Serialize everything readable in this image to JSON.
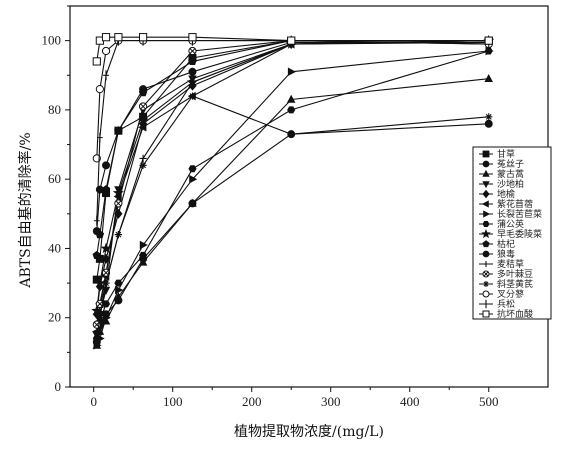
{
  "chart_data": {
    "type": "line",
    "title": "",
    "xlabel": "植物提取物浓度/(mg/L)",
    "ylabel": "ABTS自由基的清除率/%",
    "xlim": [
      -30,
      575
    ],
    "ylim": [
      0,
      110
    ],
    "xticks": [
      0,
      100,
      200,
      300,
      400,
      500
    ],
    "yticks": [
      0,
      20,
      40,
      60,
      80,
      100
    ],
    "grid": false,
    "legend_position": "right",
    "x": [
      3.9,
      7.8,
      15.6,
      31.25,
      62.5,
      125,
      250,
      500
    ],
    "series": [
      {
        "name": "甘草",
        "marker": "square-filled",
        "values": [
          31,
          37,
          56,
          74,
          78,
          95,
          100,
          100
        ]
      },
      {
        "name": "菟丝子",
        "marker": "circle-filled",
        "values": [
          45,
          57,
          64,
          74,
          86,
          91,
          99.5,
          99.5
        ]
      },
      {
        "name": "蒙古蒿",
        "marker": "triangle-up-filled",
        "values": [
          12,
          16,
          19,
          26,
          36,
          53,
          83,
          89
        ]
      },
      {
        "name": "沙地柏",
        "marker": "triangle-down-filled",
        "values": [
          15,
          21,
          28,
          57,
          80,
          89,
          99,
          100
        ]
      },
      {
        "name": "地榆",
        "marker": "diamond-filled",
        "values": [
          21,
          29,
          37,
          50,
          76,
          87,
          99,
          100
        ]
      },
      {
        "name": "紫花苜蓿",
        "marker": "triangle-left-filled",
        "values": [
          16,
          24,
          32,
          55,
          75,
          84,
          99,
          99.5
        ]
      },
      {
        "name": "长裂苦苣菜",
        "marker": "triangle-right-filled",
        "values": [
          12,
          14,
          20,
          28,
          41,
          60,
          91,
          97
        ]
      },
      {
        "name": "蒲公英",
        "marker": "hexagon-filled",
        "values": [
          14,
          19,
          24,
          30,
          38,
          63,
          80,
          97
        ]
      },
      {
        "name": "早毛委陵菜",
        "marker": "star-filled",
        "values": [
          22,
          30,
          40,
          56,
          77,
          88,
          99,
          100
        ]
      },
      {
        "name": "枯杞",
        "marker": "pentagon-filled",
        "values": [
          38,
          44,
          57,
          74,
          85,
          94,
          100,
          100
        ]
      },
      {
        "name": "狼毒",
        "marker": "circle-filled",
        "values": [
          13,
          18,
          21,
          25,
          37,
          53,
          73,
          76
        ]
      },
      {
        "name": "麦秸草",
        "marker": "plus",
        "values": [
          16,
          23,
          30,
          44,
          66,
          88,
          99,
          100
        ]
      },
      {
        "name": "多叶棘豆",
        "marker": "circle-x",
        "values": [
          18,
          24,
          33,
          53,
          81,
          97,
          100,
          100
        ]
      },
      {
        "name": "斜茎黄芪",
        "marker": "asterisk",
        "values": [
          14,
          20,
          30,
          44,
          64,
          84,
          73,
          78
        ]
      },
      {
        "name": "叉分蓼",
        "marker": "circle-open",
        "values": [
          66,
          86,
          97,
          100,
          100,
          100,
          100,
          99
        ]
      },
      {
        "name": "兵松",
        "marker": "line-plus",
        "values": [
          48,
          72,
          90,
          100,
          100,
          100,
          100,
          99
        ]
      },
      {
        "name": "抗坏血酸",
        "marker": "square-open",
        "values": [
          94,
          100,
          101,
          101,
          101,
          101,
          100,
          100
        ]
      }
    ]
  }
}
